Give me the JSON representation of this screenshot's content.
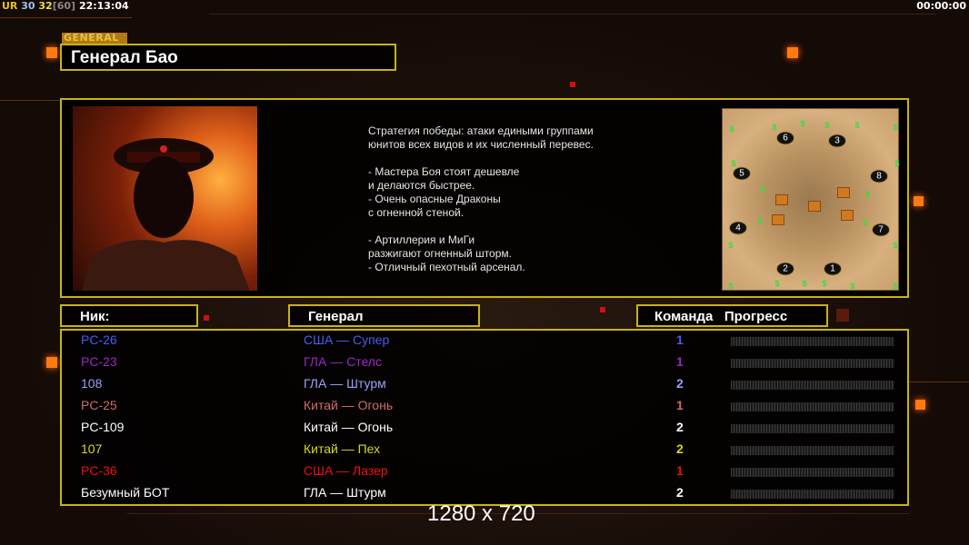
{
  "hud": {
    "left_prefix": "UR",
    "fps_a": "30",
    "fps_b": "32",
    "fps_cap": "[60]",
    "clock": "22:13:04",
    "timer": "00:00:00"
  },
  "colors": {
    "accent": "#c8b410",
    "orange": "#ff7a10"
  },
  "general": {
    "tag": "GENERAL",
    "name": "Генерал Бао",
    "description": "Стратегия победы: атаки едиными группами\nюнитов всех видов и их численный перевес.\n\n- Мастера Боя стоят дешевле\nи делаются быстрее.\n- Очень опасные Драконы\nс огненной стеной.\n\n- Артиллерия и МиГи\nразжигают огненный шторм.\n- Отличный пехотный арсенал.",
    "portrait_icon": "general-portrait"
  },
  "map": {
    "start_positions": [
      "1",
      "2",
      "3",
      "4",
      "5",
      "6",
      "7",
      "8"
    ],
    "cash_symbol": "$"
  },
  "table": {
    "headers": {
      "nick": "Ник:",
      "general": "Генерал",
      "team": "Команда",
      "progress": "Прогресс"
    },
    "rows": [
      {
        "nick": "PC-26",
        "general": "США — Супер",
        "team": "1",
        "progress": 0,
        "color": "#4a5cf0"
      },
      {
        "nick": "PC-23",
        "general": "ГЛА — Стелс",
        "team": "1",
        "progress": 0,
        "color": "#9a28c8"
      },
      {
        "nick": "108",
        "general": "ГЛА — Штурм",
        "team": "2",
        "progress": 0,
        "color": "#9aa0f8"
      },
      {
        "nick": "PC-25",
        "general": "Китай — Огонь",
        "team": "1",
        "progress": 0,
        "color": "#d06a6a"
      },
      {
        "nick": "PC-109",
        "general": "Китай — Огонь",
        "team": "2",
        "progress": 0,
        "color": "#ffffff"
      },
      {
        "nick": "107",
        "general": "Китай — Пех",
        "team": "2",
        "progress": 0,
        "color": "#d8d820"
      },
      {
        "nick": "PC-36",
        "general": "США — Лазер",
        "team": "1",
        "progress": 0,
        "color": "#f01010"
      },
      {
        "nick": "Безумный БОТ",
        "general": "ГЛА — Штурм",
        "team": "2",
        "progress": 0,
        "color": "#ffffff"
      }
    ]
  },
  "resolution": "1280 x 720"
}
